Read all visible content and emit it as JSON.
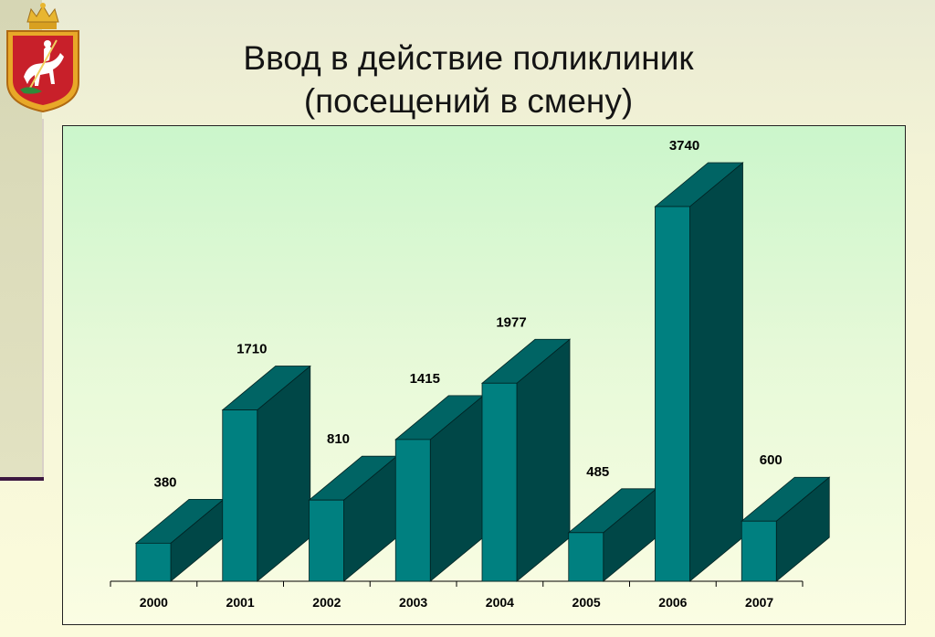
{
  "page": {
    "title_line1": "Ввод в действие поликлиник",
    "title_line2": "(посещений в смену)"
  },
  "logo": {
    "name": "moscow-oblast-coat-of-arms"
  },
  "colors": {
    "bar_front": "#008080",
    "bar_side": "#004747",
    "bar_top": "#006464",
    "plot_bg_top": "#cbf6cb",
    "plot_bg_bottom": "#fbfde3",
    "sidebar_rule": "#3c1840"
  },
  "chart_data": {
    "type": "bar",
    "style": "3d",
    "title": "Ввод в действие поликлиник (посещений в смену)",
    "xlabel": "",
    "ylabel": "",
    "categories": [
      "2000",
      "2001",
      "2002",
      "2003",
      "2004",
      "2005",
      "2006",
      "2007"
    ],
    "values": [
      380,
      1710,
      810,
      1415,
      1977,
      485,
      3740,
      600
    ],
    "value_labels": [
      "380",
      "1710",
      "810",
      "1415",
      "1977",
      "485",
      "3740",
      "600"
    ],
    "ylim": [
      0,
      3740
    ],
    "grid": false,
    "legend": "none"
  }
}
